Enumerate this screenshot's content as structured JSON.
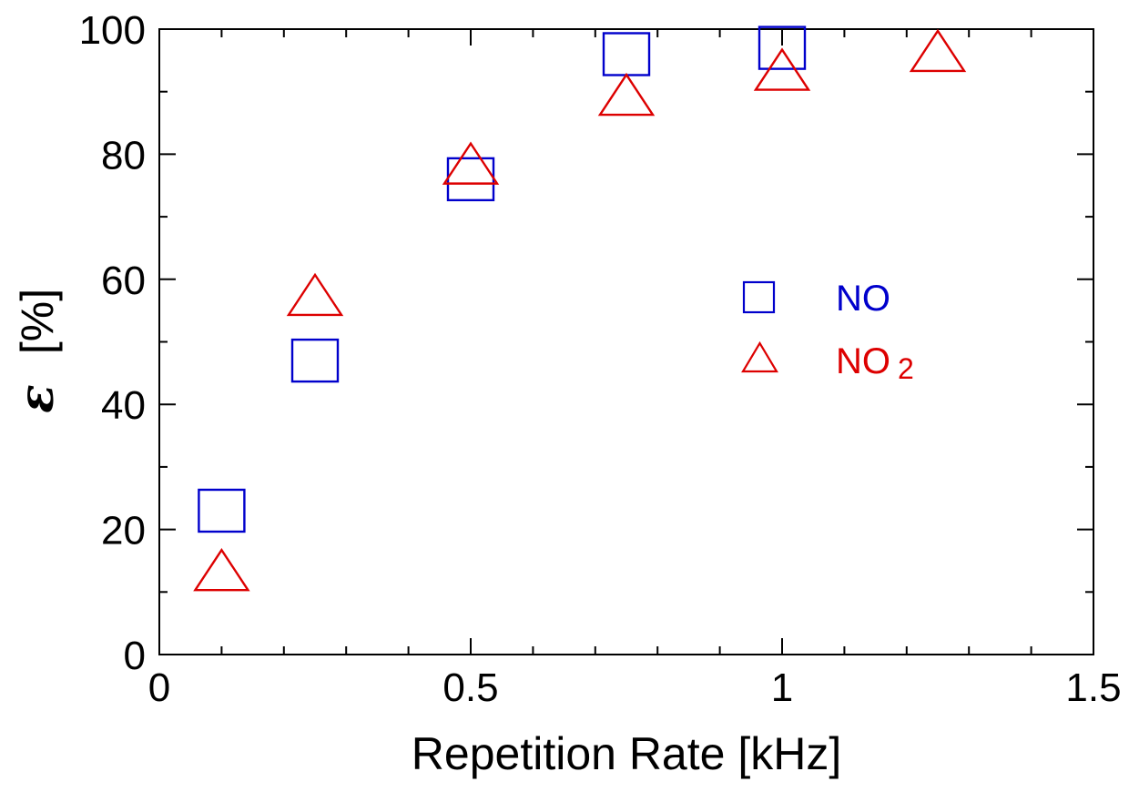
{
  "chart_data": {
    "type": "scatter",
    "xlabel": "Repetition Rate [kHz]",
    "ylabel_symbol": "ε",
    "ylabel_unit": "[%]",
    "xlim": [
      0,
      1.5
    ],
    "ylim": [
      0,
      100
    ],
    "x_ticks": [
      "0",
      "0.5",
      "1",
      "1.5"
    ],
    "y_ticks": [
      "0",
      "20",
      "40",
      "60",
      "80",
      "100"
    ],
    "x_tick_values": [
      0,
      0.5,
      1,
      1.5
    ],
    "y_tick_values": [
      0,
      20,
      40,
      60,
      80,
      100
    ],
    "x_minor_step": 0.1,
    "y_minor_step": 10,
    "grid": false,
    "legend_position": "right-middle",
    "series": [
      {
        "name": "NO",
        "marker": "square",
        "color": "#0000cc",
        "x": [
          0.1,
          0.25,
          0.5,
          0.75,
          1.0
        ],
        "y": [
          23,
          47,
          76,
          96,
          97
        ]
      },
      {
        "name": "NO",
        "name_subscript": "2",
        "marker": "triangle",
        "color": "#dd0000",
        "x": [
          0.1,
          0.25,
          0.5,
          0.75,
          1.0,
          1.25
        ],
        "y": [
          13,
          57,
          78,
          89,
          93,
          96
        ]
      }
    ]
  }
}
